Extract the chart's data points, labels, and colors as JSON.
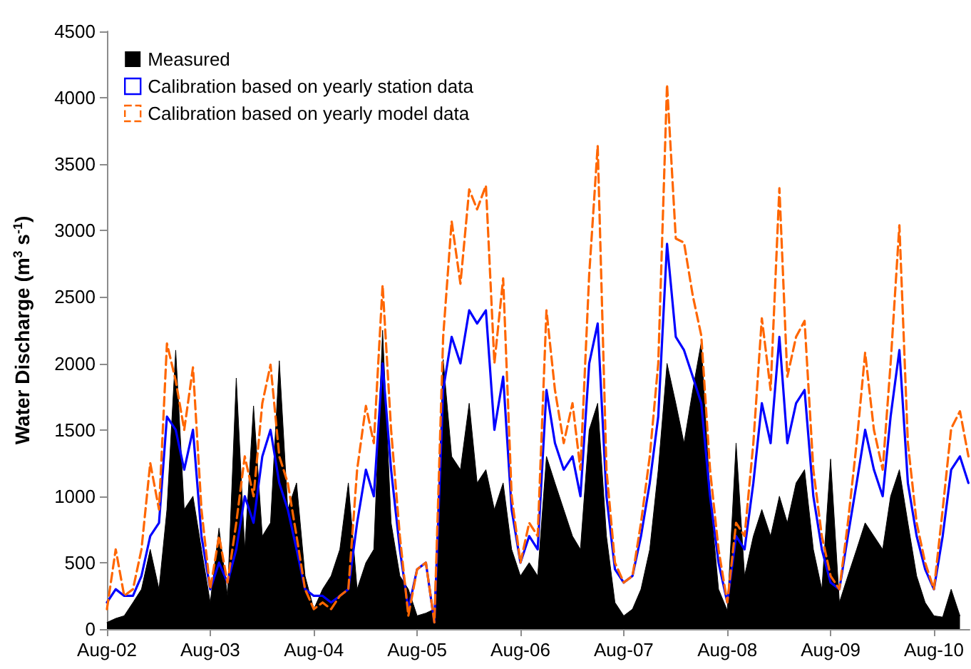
{
  "chart_data": {
    "type": "line",
    "ylabel": "Water Discharge (m$^{3}$ s$^{-1}$)",
    "x": [
      "2002-08",
      "2002-09",
      "2002-10",
      "2002-11",
      "2002-12",
      "2003-01",
      "2003-02",
      "2003-03",
      "2003-04",
      "2003-05",
      "2003-06",
      "2003-07",
      "2003-08",
      "2003-09",
      "2003-10",
      "2003-11",
      "2003-12",
      "2004-01",
      "2004-02",
      "2004-03",
      "2004-04",
      "2004-05",
      "2004-06",
      "2004-07",
      "2004-08",
      "2004-09",
      "2004-10",
      "2004-11",
      "2004-12",
      "2005-01",
      "2005-02",
      "2005-03",
      "2005-04",
      "2005-05",
      "2005-06",
      "2005-07",
      "2005-08",
      "2005-09",
      "2005-10",
      "2005-11",
      "2005-12",
      "2006-01",
      "2006-02",
      "2006-03",
      "2006-04",
      "2006-05",
      "2006-06",
      "2006-07",
      "2006-08",
      "2006-09",
      "2006-10",
      "2006-11",
      "2006-12",
      "2007-01",
      "2007-02",
      "2007-03",
      "2007-04",
      "2007-05",
      "2007-06",
      "2007-07",
      "2007-08",
      "2007-09",
      "2007-10",
      "2007-11",
      "2007-12",
      "2008-01",
      "2008-02",
      "2008-03",
      "2008-04",
      "2008-05",
      "2008-06",
      "2008-07",
      "2008-08",
      "2008-09",
      "2008-10",
      "2008-11",
      "2008-12",
      "2009-01",
      "2009-02",
      "2009-03",
      "2009-04",
      "2009-05",
      "2009-06",
      "2009-07",
      "2009-08",
      "2009-09",
      "2009-10",
      "2009-11",
      "2009-12",
      "2010-01",
      "2010-02",
      "2010-03",
      "2010-04",
      "2010-05",
      "2010-06",
      "2010-07",
      "2010-08",
      "2010-09",
      "2010-10",
      "2010-11",
      "2010-12"
    ],
    "series": [
      {
        "name": "Measured",
        "type": "area",
        "color": "#000000",
        "values": [
          50,
          80,
          100,
          200,
          300,
          600,
          300,
          900,
          2100,
          900,
          1000,
          600,
          200,
          760,
          250,
          1890,
          600,
          1680,
          700,
          800,
          2020,
          900,
          1100,
          400,
          150,
          300,
          400,
          600,
          1100,
          300,
          500,
          600,
          2250,
          800,
          400,
          300,
          100,
          120,
          150,
          2030,
          1300,
          1200,
          1700,
          1100,
          1200,
          900,
          1100,
          600,
          400,
          500,
          400,
          1300,
          1100,
          900,
          700,
          600,
          1500,
          1700,
          700,
          200,
          100,
          150,
          300,
          600,
          1200,
          2000,
          1700,
          1400,
          1800,
          2160,
          1000,
          300,
          140,
          1400,
          400,
          700,
          900,
          700,
          1000,
          800,
          1100,
          1200,
          600,
          300,
          1280,
          200,
          400,
          600,
          800,
          700,
          600,
          1000,
          1200,
          800,
          400,
          200,
          100,
          90,
          300,
          100,
          null
        ]
      },
      {
        "name": "Calibration based on yearly station data",
        "color": "#0000ff",
        "line_style": "solid",
        "values": [
          200,
          300,
          250,
          250,
          400,
          700,
          800,
          1600,
          1500,
          1200,
          1500,
          700,
          300,
          500,
          350,
          600,
          1000,
          800,
          1300,
          1500,
          1100,
          900,
          600,
          300,
          250,
          250,
          200,
          250,
          300,
          800,
          1200,
          1000,
          2000,
          1200,
          600,
          150,
          450,
          500,
          50,
          1800,
          2200,
          2000,
          2400,
          2300,
          2400,
          1500,
          1900,
          900,
          500,
          700,
          600,
          1800,
          1400,
          1200,
          1300,
          1000,
          2000,
          2300,
          1000,
          450,
          350,
          400,
          700,
          1100,
          1600,
          2900,
          2200,
          2100,
          1900,
          1700,
          1000,
          500,
          200,
          700,
          600,
          1100,
          1700,
          1400,
          2200,
          1400,
          1700,
          1800,
          1000,
          600,
          350,
          300,
          700,
          1100,
          1500,
          1200,
          1000,
          1600,
          2100,
          1100,
          700,
          450,
          300,
          700,
          1200,
          1300,
          1100
        ]
      },
      {
        "name": "Calibration based on yearly model data",
        "color": "#ff6600",
        "line_style": "dashed",
        "values": [
          150,
          600,
          250,
          300,
          600,
          1250,
          900,
          2150,
          1870,
          1500,
          1970,
          900,
          300,
          700,
          350,
          800,
          1300,
          1000,
          1700,
          1990,
          1300,
          1100,
          700,
          300,
          150,
          200,
          150,
          250,
          300,
          1200,
          1680,
          1400,
          2590,
          1500,
          700,
          100,
          450,
          500,
          50,
          2200,
          3070,
          2600,
          3310,
          3160,
          3340,
          2000,
          2640,
          1000,
          500,
          800,
          700,
          2400,
          1800,
          1400,
          1700,
          1200,
          2670,
          3640,
          1200,
          500,
          350,
          400,
          800,
          1300,
          2000,
          4100,
          2940,
          2910,
          2510,
          2210,
          1200,
          600,
          200,
          800,
          700,
          1400,
          2340,
          1800,
          3320,
          1900,
          2200,
          2320,
          1200,
          700,
          400,
          300,
          800,
          1400,
          2080,
          1500,
          1200,
          2000,
          3040,
          1400,
          800,
          500,
          300,
          900,
          1510,
          1640,
          1300
        ]
      }
    ],
    "xlim": [
      "2002-08",
      "2010-12-05"
    ],
    "xticks": [
      {
        "value": "2002-08",
        "label": "Aug-02"
      },
      {
        "value": "2003-08",
        "label": "Aug-03"
      },
      {
        "value": "2004-08",
        "label": "Aug-04"
      },
      {
        "value": "2005-08",
        "label": "Aug-05"
      },
      {
        "value": "2006-08",
        "label": "Aug-06"
      },
      {
        "value": "2007-08",
        "label": "Aug-07"
      },
      {
        "value": "2008-08",
        "label": "Aug-08"
      },
      {
        "value": "2009-08",
        "label": "Aug-09"
      },
      {
        "value": "2010-08",
        "label": "Aug-10"
      }
    ],
    "ylim": [
      0,
      4500
    ],
    "yticks": [
      0,
      500,
      1000,
      1500,
      2000,
      2500,
      3000,
      3500,
      4000,
      4500
    ],
    "grid": false,
    "legend": "top left",
    "marker": "none"
  }
}
